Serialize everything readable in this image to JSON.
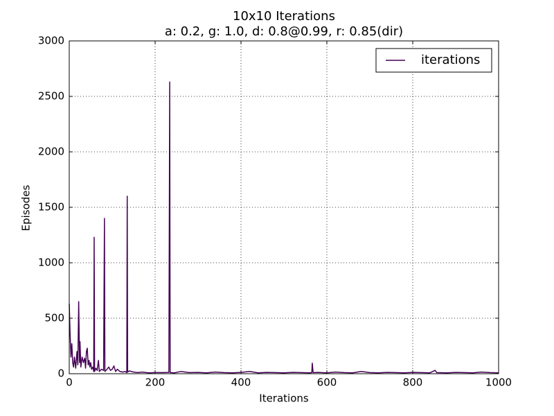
{
  "chart_data": {
    "type": "line",
    "title": "10x10 Iterations",
    "subtitle": "a: 0.2, g: 1.0, d: 0.8@0.99, r: 0.85(dir)",
    "x_label": "Iterations",
    "y_label": "Episodes",
    "x": [
      0,
      2,
      4,
      6,
      8,
      10,
      12,
      15,
      18,
      20,
      22,
      24,
      25,
      27,
      30,
      33,
      36,
      38,
      40,
      42,
      44,
      46,
      48,
      50,
      52,
      55,
      57,
      58,
      59,
      62,
      65,
      68,
      70,
      75,
      80,
      82,
      83,
      88,
      92,
      96,
      100,
      104,
      108,
      112,
      118,
      125,
      130,
      134,
      135,
      136,
      140,
      150,
      160,
      170,
      185,
      200,
      220,
      232,
      234,
      235,
      245,
      260,
      270,
      280,
      300,
      320,
      340,
      360,
      380,
      400,
      420,
      440,
      460,
      480,
      500,
      520,
      540,
      560,
      565,
      566,
      568,
      580,
      600,
      620,
      640,
      660,
      680,
      700,
      720,
      740,
      760,
      780,
      800,
      820,
      840,
      852,
      856,
      880,
      900,
      920,
      940,
      960,
      980,
      1000
    ],
    "series": [
      {
        "name": "iterations",
        "color": "#440154",
        "values": [
          630,
          350,
          150,
          270,
          100,
          60,
          150,
          50,
          200,
          80,
          650,
          100,
          290,
          60,
          150,
          100,
          140,
          50,
          200,
          230,
          80,
          120,
          60,
          100,
          40,
          60,
          20,
          1230,
          20,
          50,
          30,
          120,
          20,
          40,
          30,
          1400,
          20,
          40,
          60,
          30,
          40,
          70,
          20,
          40,
          20,
          15,
          20,
          10,
          1600,
          15,
          25,
          15,
          10,
          15,
          8,
          10,
          10,
          12,
          2630,
          10,
          8,
          20,
          15,
          10,
          12,
          8,
          15,
          10,
          8,
          12,
          20,
          8,
          12,
          10,
          8,
          12,
          10,
          8,
          10,
          95,
          10,
          12,
          8,
          15,
          10,
          8,
          20,
          10,
          8,
          12,
          10,
          8,
          12,
          10,
          8,
          30,
          10,
          8,
          12,
          10,
          8,
          15,
          10,
          8
        ]
      }
    ],
    "xlim": [
      0,
      1000
    ],
    "xticks": [
      0,
      200,
      400,
      600,
      800,
      1000
    ],
    "ylim": [
      0,
      3000
    ],
    "yticks": [
      0,
      500,
      1000,
      1500,
      2000,
      2500,
      3000
    ],
    "grid": true,
    "legend": "upper right"
  }
}
